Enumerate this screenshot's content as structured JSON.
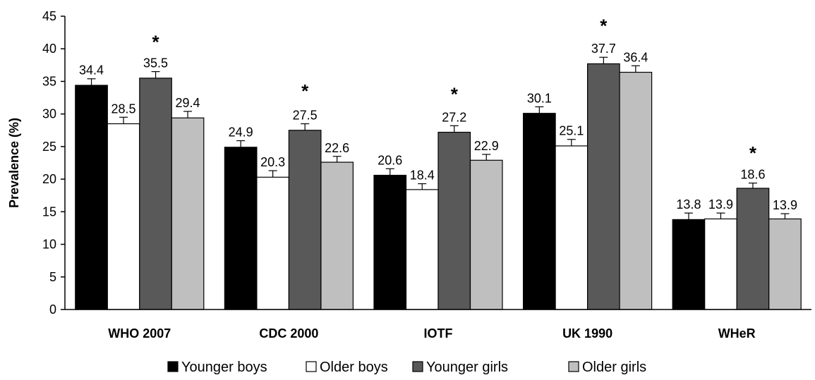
{
  "chart_data": {
    "type": "bar",
    "ylabel": "Prevalence (%)",
    "xlabel": "",
    "ylim": [
      0,
      45
    ],
    "yticks": [
      "0",
      "5",
      "10",
      "15",
      "20",
      "25",
      "30",
      "35",
      "40",
      "45"
    ],
    "grid": false,
    "legend_position": "bottom",
    "categories": [
      "WHO 2007",
      "CDC 2000",
      "IOTF",
      "UK 1990",
      "WHeR"
    ],
    "series": [
      {
        "name": "Younger boys",
        "color": "#000000",
        "values": [
          34.4,
          24.9,
          20.6,
          30.1,
          13.8
        ],
        "labels": [
          "34.4",
          "24.9",
          "20.6",
          "30.1",
          "13.8"
        ],
        "errors": [
          1.0,
          1.0,
          1.0,
          1.0,
          1.0
        ]
      },
      {
        "name": "Older boys",
        "color": "#ffffff",
        "values": [
          28.5,
          20.3,
          18.4,
          25.1,
          13.9
        ],
        "labels": [
          "28.5",
          "20.3",
          "18.4",
          "25.1",
          "13.9"
        ],
        "errors": [
          1.0,
          1.0,
          0.9,
          1.0,
          0.9
        ]
      },
      {
        "name": "Younger girls",
        "color": "#595959",
        "values": [
          35.5,
          27.5,
          27.2,
          37.7,
          18.6
        ],
        "labels": [
          "35.5",
          "27.5",
          "27.2",
          "37.7",
          "18.6"
        ],
        "errors": [
          1.0,
          1.0,
          1.0,
          1.0,
          0.8
        ]
      },
      {
        "name": "Older girls",
        "color": "#bfbfbf",
        "values": [
          29.4,
          22.6,
          22.9,
          36.4,
          13.9
        ],
        "labels": [
          "29.4",
          "22.6",
          "22.9",
          "36.4",
          "13.9"
        ],
        "errors": [
          1.0,
          0.9,
          0.9,
          1.0,
          0.8
        ]
      }
    ],
    "annotations": [
      {
        "text": "*",
        "category": "WHO 2007",
        "y": 42
      },
      {
        "text": "*",
        "category": "CDC 2000",
        "y": 34.5
      },
      {
        "text": "*",
        "category": "IOTF",
        "y": 34
      },
      {
        "text": "*",
        "category": "UK 1990",
        "y": 44.5
      },
      {
        "text": "*",
        "category": "WHeR",
        "y": 25
      }
    ]
  }
}
